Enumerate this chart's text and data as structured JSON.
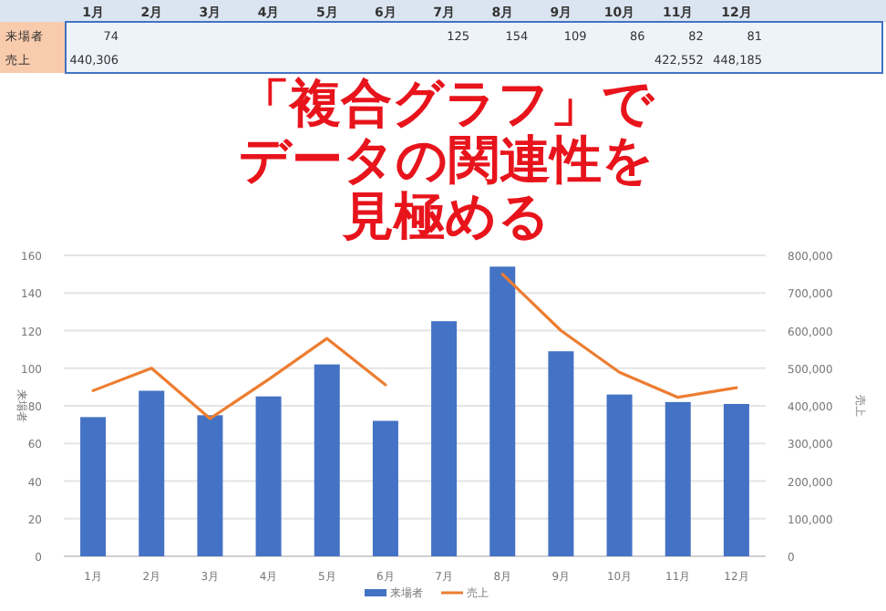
{
  "chart_data": {
    "type": "bar",
    "title": "「複合グラフ」でデータの関連性を見極める",
    "categories": [
      "1月",
      "2月",
      "3月",
      "4月",
      "5月",
      "6月",
      "7月",
      "8月",
      "9月",
      "10月",
      "11月",
      "12月"
    ],
    "series": [
      {
        "name": "来場者",
        "color": "#4472c4",
        "values": [
          74,
          88,
          75,
          85,
          102,
          72,
          125,
          154,
          109,
          86,
          82,
          81
        ],
        "value_labels": [
          "74",
          null,
          null,
          null,
          null,
          null,
          "125",
          "154",
          "109",
          "86",
          "82",
          "81"
        ]
      },
      {
        "name": "売上",
        "type": "line",
        "axis": "y2",
        "color": "#ed7d31",
        "values": [
          440306,
          500000,
          366000,
          470000,
          579000,
          456000,
          null,
          750000,
          600000,
          489000,
          422552,
          448185
        ],
        "value_labels": [
          "440,306",
          null,
          null,
          null,
          null,
          null,
          null,
          null,
          null,
          null,
          "422,552",
          "448,185"
        ]
      }
    ],
    "ylabel": "来場者",
    "y2label": "売上",
    "ylim": [
      0,
      160
    ],
    "yticks": [
      0,
      20,
      40,
      60,
      80,
      100,
      120,
      140,
      160
    ],
    "y2lim": [
      0,
      800000
    ],
    "y2ticks": [
      {
        "value": 0,
        "label": "0"
      },
      {
        "value": 100000,
        "label": "100,000"
      },
      {
        "value": 200000,
        "label": "200,000"
      },
      {
        "value": 300000,
        "label": "300,000"
      },
      {
        "value": 400000,
        "label": "400,000"
      },
      {
        "value": 500000,
        "label": "500,000"
      },
      {
        "value": 600000,
        "label": "600,000"
      },
      {
        "value": 700000,
        "label": "700,000"
      },
      {
        "value": 800000,
        "label": "800,000"
      }
    ],
    "grid": "y",
    "legend": "bottom"
  }
}
